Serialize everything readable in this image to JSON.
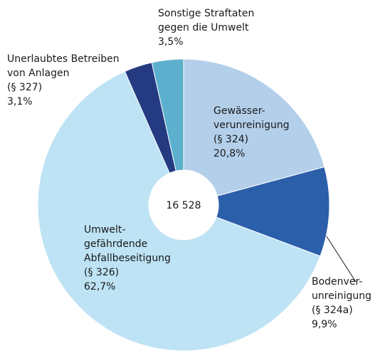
{
  "chart_data": {
    "type": "pie",
    "categories": [
      [
        "Gewässer-",
        "verunreinigung",
        "(§ 324)"
      ],
      [
        "Bodenver-",
        "unreinigung",
        "(§ 324a)"
      ],
      [
        "Umwelt-",
        "gefährdende",
        "Abfallbeseitigung",
        "(§ 326)"
      ],
      [
        "Unerlaubtes Betreiben",
        "von Anlagen",
        "(§ 327)"
      ],
      [
        "Sonstige Straftaten",
        "gegen die Umwelt"
      ]
    ],
    "values": [
      20.8,
      9.9,
      62.7,
      3.1,
      3.5
    ],
    "value_labels": [
      "20,8%",
      "9,9%",
      "62,7%",
      "3,1%",
      "3,5%"
    ],
    "colors": [
      "#b3cfea",
      "#2c5fa9",
      "#bde3f4",
      "#243b82",
      "#5cb0cd"
    ],
    "center_label": "16 528"
  }
}
